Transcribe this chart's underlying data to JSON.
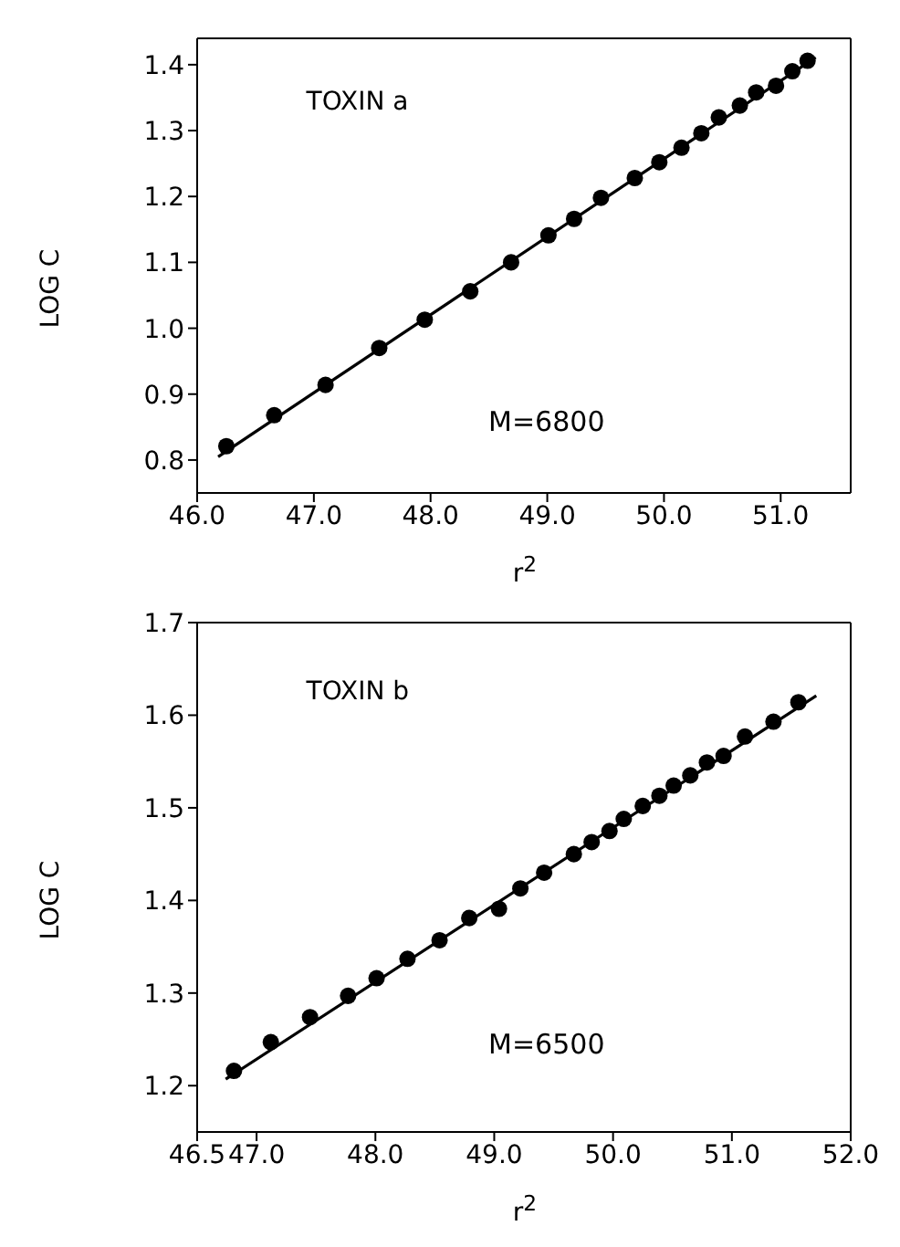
{
  "chart_data": [
    {
      "type": "scatter",
      "title": "TOXIN a",
      "xlabel": "r$^{2}$",
      "ylabel": "LOG C",
      "annotations": [
        "M=6800"
      ],
      "xlim": [
        46.0,
        51.6
      ],
      "ylim": [
        0.75,
        1.44
      ],
      "xticks": [
        {
          "value": 46,
          "label": "46.0"
        },
        {
          "value": 47,
          "label": "47.0"
        },
        {
          "value": 48,
          "label": "48.0"
        },
        {
          "value": 49,
          "label": "49.0"
        },
        {
          "value": 50,
          "label": "50.0"
        },
        {
          "value": 51,
          "label": "51.0"
        }
      ],
      "yticks": [
        0.8,
        0.9,
        {
          "value": 1,
          "label": "1.0"
        },
        1.1,
        1.2,
        1.3,
        1.4
      ],
      "grid": false,
      "legend": false,
      "marker": "circle",
      "series": [
        {
          "type": "scatter",
          "color": "#000000",
          "x": [
            46.25,
            46.66,
            47.1,
            47.56,
            47.95,
            48.34,
            48.69,
            49.01,
            49.23,
            49.46,
            49.75,
            49.96,
            50.15,
            50.32,
            50.47,
            50.65,
            50.79,
            50.96,
            51.1,
            51.23
          ],
          "values": [
            0.821,
            0.868,
            0.914,
            0.97,
            1.013,
            1.056,
            1.1,
            1.141,
            1.166,
            1.198,
            1.228,
            1.252,
            1.274,
            1.296,
            1.32,
            1.338,
            1.358,
            1.368,
            1.39,
            1.406
          ]
        },
        {
          "type": "line",
          "color": "#000000",
          "marker": "none",
          "line_style": "solid",
          "x": [
            46.18,
            51.3
          ],
          "values": [
            0.805,
            1.411
          ]
        }
      ]
    },
    {
      "type": "scatter",
      "title": "TOXIN b",
      "xlabel": "r$^{2}$",
      "ylabel": "LOG C",
      "annotations": [
        "M=6500"
      ],
      "xlim": [
        46.5,
        52.0
      ],
      "ylim": [
        1.15,
        1.7
      ],
      "xticks": [
        46.5,
        {
          "value": 47,
          "label": "47.0"
        },
        {
          "value": 48,
          "label": "48.0"
        },
        {
          "value": 49,
          "label": "49.0"
        },
        {
          "value": 50,
          "label": "50.0"
        },
        {
          "value": 51,
          "label": "51.0"
        },
        {
          "value": 52,
          "label": "52.0"
        }
      ],
      "yticks": [
        1.2,
        1.3,
        1.4,
        1.5,
        1.6,
        1.7
      ],
      "grid": false,
      "legend": false,
      "marker": "circle",
      "series": [
        {
          "type": "scatter",
          "color": "#000000",
          "x": [
            46.81,
            47.12,
            47.45,
            47.77,
            48.01,
            48.27,
            48.54,
            48.79,
            49.04,
            49.22,
            49.42,
            49.67,
            49.82,
            49.97,
            50.09,
            50.25,
            50.39,
            50.51,
            50.65,
            50.79,
            50.93,
            51.11,
            51.35,
            51.56
          ],
          "values": [
            1.216,
            1.247,
            1.274,
            1.297,
            1.316,
            1.337,
            1.357,
            1.381,
            1.391,
            1.413,
            1.43,
            1.45,
            1.463,
            1.475,
            1.488,
            1.502,
            1.513,
            1.524,
            1.535,
            1.549,
            1.556,
            1.577,
            1.593,
            1.614
          ]
        },
        {
          "type": "line",
          "color": "#000000",
          "marker": "none",
          "line_style": "solid",
          "x": [
            46.74,
            51.71
          ],
          "values": [
            1.207,
            1.621
          ]
        }
      ]
    }
  ]
}
